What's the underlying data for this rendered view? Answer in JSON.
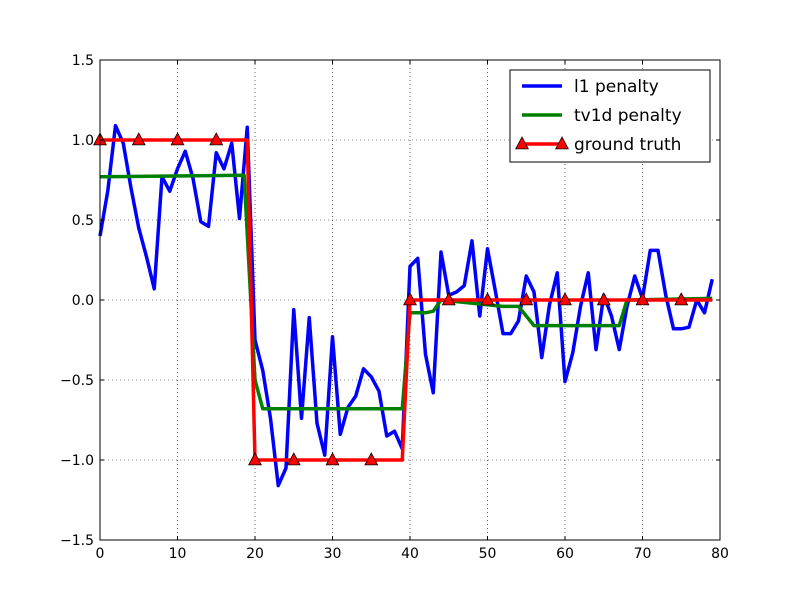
{
  "chart_data": {
    "type": "line",
    "xlim": [
      0,
      80
    ],
    "ylim": [
      -1.5,
      1.5
    ],
    "xticks": [
      0,
      10,
      20,
      30,
      40,
      50,
      60,
      70,
      80
    ],
    "xtick_labels": [
      "0",
      "10",
      "20",
      "30",
      "40",
      "50",
      "60",
      "70",
      "80"
    ],
    "yticks": [
      1.5,
      1.0,
      0.5,
      0.0,
      -0.5,
      -1.0,
      -1.5
    ],
    "ytick_labels": [
      "1.5",
      "1.0",
      "0.5",
      "0.0",
      "−0.5",
      "−1.0",
      "−1.5"
    ],
    "grid": true,
    "legend_position": "top-right",
    "series": [
      {
        "name": "l1 penalty",
        "color": "#0000ff",
        "marker": "none",
        "x": [
          0,
          1,
          2,
          3,
          4,
          5,
          6,
          7,
          8,
          9,
          10,
          11,
          12,
          13,
          14,
          15,
          16,
          17,
          18,
          19,
          20,
          21,
          22,
          23,
          24,
          25,
          26,
          27,
          28,
          29,
          30,
          31,
          32,
          33,
          34,
          35,
          36,
          37,
          38,
          39,
          40,
          41,
          42,
          43,
          44,
          45,
          46,
          47,
          48,
          49,
          50,
          51,
          52,
          53,
          54,
          55,
          56,
          57,
          58,
          59,
          60,
          61,
          62,
          63,
          64,
          65,
          66,
          67,
          68,
          69,
          70,
          71,
          72,
          73,
          74,
          75,
          76,
          77,
          78,
          79
        ],
        "values": [
          0.4,
          0.68,
          1.09,
          0.98,
          0.7,
          0.45,
          0.27,
          0.07,
          0.77,
          0.68,
          0.82,
          0.93,
          0.76,
          0.49,
          0.46,
          0.92,
          0.82,
          0.98,
          0.51,
          1.08,
          -0.25,
          -0.44,
          -0.74,
          -1.16,
          -1.05,
          -0.06,
          -0.74,
          -0.11,
          -0.77,
          -0.97,
          -0.23,
          -0.84,
          -0.67,
          -0.6,
          -0.43,
          -0.48,
          -0.57,
          -0.85,
          -0.82,
          -0.93,
          0.21,
          0.26,
          -0.34,
          -0.58,
          0.3,
          0.03,
          0.05,
          0.09,
          0.37,
          -0.1,
          0.32,
          0.06,
          -0.21,
          -0.21,
          -0.13,
          0.15,
          0.05,
          -0.36,
          -0.03,
          0.17,
          -0.51,
          -0.33,
          -0.04,
          0.17,
          -0.31,
          0.03,
          -0.1,
          -0.31,
          -0.04,
          0.15,
          0.01,
          0.31,
          0.31,
          0.03,
          -0.18,
          -0.18,
          -0.17,
          0.0,
          -0.08,
          0.13
        ]
      },
      {
        "name": "tv1d penalty",
        "color": "#008000",
        "marker": "none",
        "x": [
          0,
          18.6,
          20,
          21,
          39,
          40,
          42,
          43,
          44,
          52,
          54,
          56,
          58,
          66,
          67,
          68,
          79
        ],
        "values": [
          0.77,
          0.78,
          -0.5,
          -0.68,
          -0.68,
          -0.08,
          -0.08,
          -0.07,
          0.0,
          -0.04,
          -0.04,
          -0.16,
          -0.16,
          -0.16,
          -0.16,
          0.0,
          0.01
        ]
      },
      {
        "name": "ground truth",
        "color": "#ff0000",
        "marker": "triangle",
        "marker_color": "#ff0000",
        "x": [
          0,
          19,
          20,
          39,
          40,
          79
        ],
        "values": [
          1.0,
          1.0,
          -1.0,
          -1.0,
          0.0,
          0.0
        ],
        "marker_x": [
          0,
          5,
          10,
          15,
          20,
          25,
          30,
          35,
          40,
          45,
          50,
          55,
          60,
          65,
          70,
          75
        ]
      }
    ]
  }
}
